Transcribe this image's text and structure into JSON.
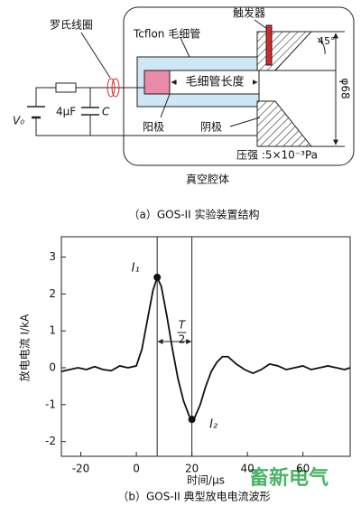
{
  "diagram": {
    "coil": "罗氏线圈",
    "capillary": "Tcflon 毛细管",
    "trigger": "触发器",
    "angle": "45°",
    "diameter": "φ68",
    "capillary_length": "毛细管长度",
    "anode": "阳极",
    "cathode": "阴极",
    "pressure": "压强 :5×10⁻³Pa",
    "capacitance": "4μF",
    "capacitor": "C",
    "source": "V₀",
    "chamber": "真空腔体",
    "caption": "（a）GOS-II 实验装置结构"
  },
  "chart_data": {
    "type": "line",
    "y_label": "放电电流 I/kA",
    "x_label": "时间/μs",
    "caption": "（b）GOS-II 典型放电电流波形",
    "x": [
      -27,
      -24,
      -21,
      -18,
      -15,
      -12,
      -9,
      -6,
      -3,
      0,
      2,
      4,
      6,
      7.5,
      9,
      11,
      13,
      15,
      17,
      19,
      20,
      21,
      23,
      25,
      27,
      29,
      31,
      33,
      36,
      39,
      42,
      45,
      48,
      51,
      54,
      57,
      60,
      63,
      66,
      69,
      72,
      75,
      77
    ],
    "series": [
      {
        "name": "I",
        "color": "#111111",
        "values": [
          -0.1,
          -0.05,
          0.0,
          -0.05,
          0.03,
          -0.05,
          -0.08,
          0.05,
          0.0,
          0.05,
          0.5,
          1.3,
          2.1,
          2.45,
          2.2,
          1.4,
          0.5,
          -0.3,
          -0.9,
          -1.3,
          -1.4,
          -1.35,
          -1.0,
          -0.5,
          -0.1,
          0.15,
          0.3,
          0.3,
          0.1,
          -0.05,
          -0.15,
          -0.05,
          0.1,
          0.05,
          -0.05,
          0.0,
          0.05,
          -0.05,
          0.0,
          0.05,
          0.0,
          -0.05,
          0.0
        ]
      }
    ],
    "xlim": [
      -27,
      77
    ],
    "ylim": [
      -2.4,
      3.55
    ],
    "xticks": [
      -20,
      0,
      20,
      40,
      60
    ],
    "yticks": [
      -2,
      -1,
      0,
      1,
      2,
      3
    ],
    "markers": [
      {
        "x": 7.5,
        "y": 2.45,
        "label": "I₁"
      },
      {
        "x": 20,
        "y": -1.4,
        "label": "I₂"
      }
    ],
    "half_period": {
      "numerator": "T",
      "denominator": "2"
    },
    "watermark": "畜新电气"
  }
}
